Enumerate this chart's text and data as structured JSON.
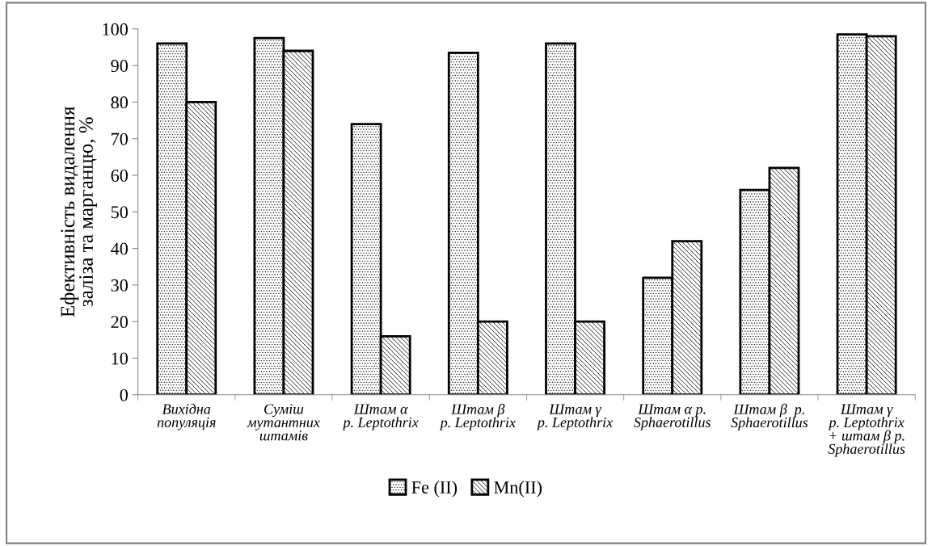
{
  "chart_data": {
    "type": "bar",
    "ylabel": "Ефективність видалення\nзаліза та марганцю, %",
    "categories": [
      "Вихідна\nпопуляція",
      "Суміш\nмутантних\nштамів",
      "Штам α\nр. Leptothrix",
      "Штам β\nр. Leptothrix",
      "Штам γ\nр. Leptothrix",
      "Штам α р.\nSphaerotillus",
      "Штам β  р.\nSphaerotillus",
      "Штам γ\nр. Leptothrix\n+ штам β р.\nSphaerotillus"
    ],
    "series": [
      {
        "name": "Fe (II)",
        "color": "#000000",
        "values": [
          96,
          97.5,
          74,
          93.5,
          96,
          32,
          56,
          98.5
        ]
      },
      {
        "name": "Mn(II)",
        "color": "#000000",
        "values": [
          80,
          94,
          16,
          20,
          20,
          42,
          62,
          98
        ]
      }
    ],
    "ylim": [
      0,
      100
    ],
    "yticks": [
      0,
      10,
      20,
      30,
      40,
      50,
      60,
      70,
      80,
      90,
      100
    ],
    "grid": false,
    "legend": "bottom"
  }
}
